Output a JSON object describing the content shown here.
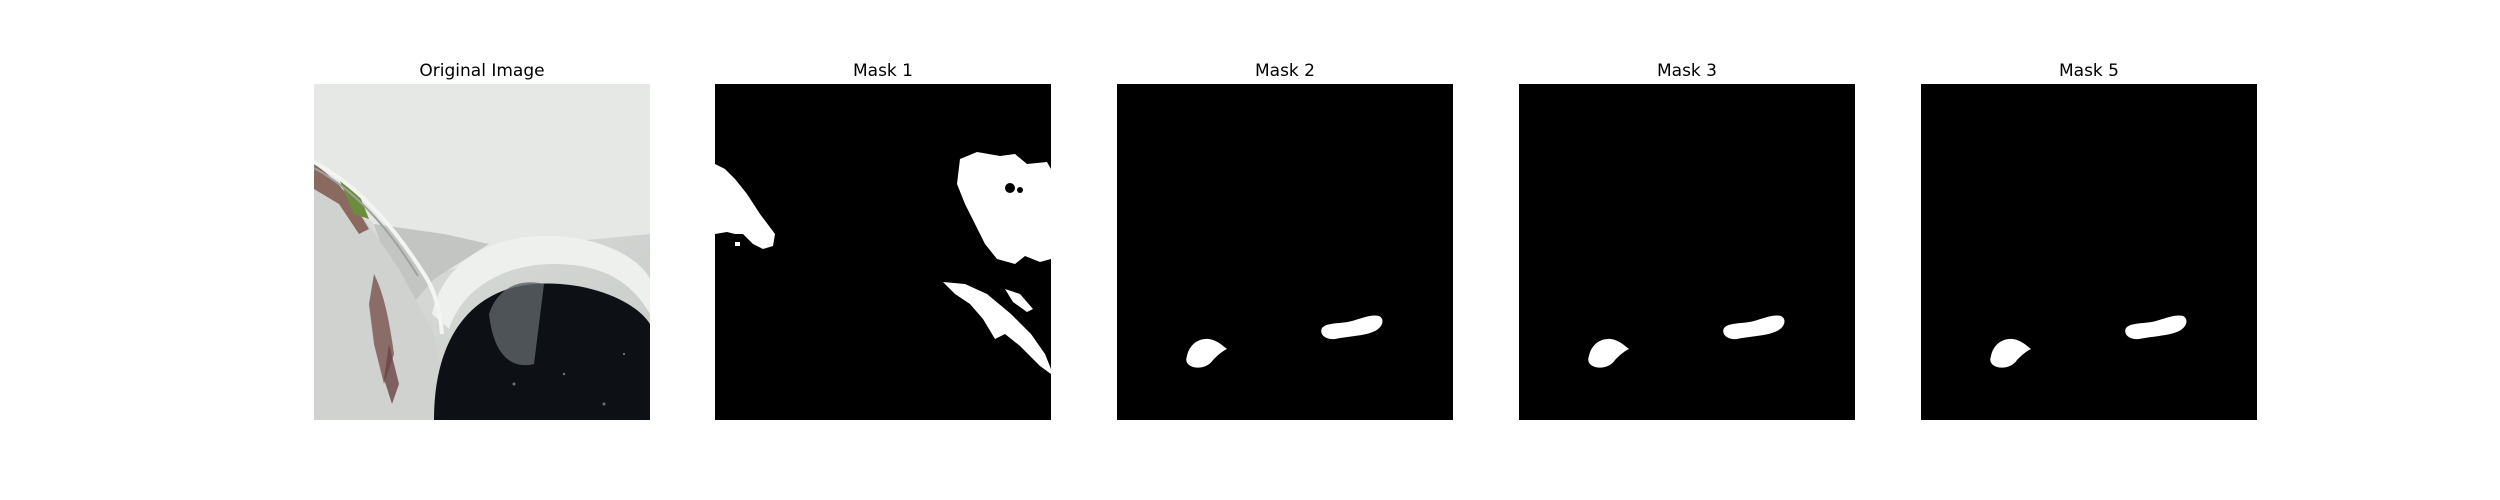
{
  "figure": {
    "panels": [
      {
        "title": "Original Image",
        "kind": "photo",
        "description_icon": "car-bumper-photo"
      },
      {
        "title": "Mask 1",
        "kind": "mask"
      },
      {
        "title": "Mask 2",
        "kind": "mask"
      },
      {
        "title": "Mask 3",
        "kind": "mask"
      },
      {
        "title": "Mask 5",
        "kind": "mask"
      }
    ]
  },
  "colors": {
    "background": "#ffffff",
    "mask_background": "#000000",
    "mask_foreground": "#ffffff"
  }
}
